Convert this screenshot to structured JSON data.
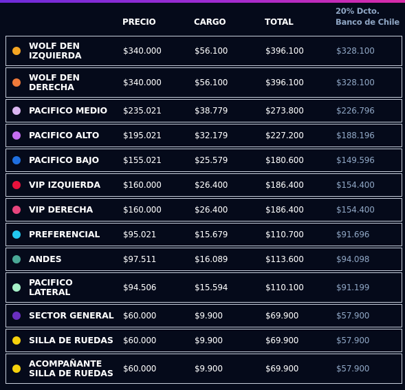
{
  "header": {
    "precio": "PRECIO",
    "cargo": "CARGO",
    "total": "TOTAL",
    "dcto_line1": "20% Dcto.",
    "dcto_line2": "Banco de Chile"
  },
  "rows": [
    {
      "name1": "WOLF DEN",
      "name2": "IZQUIERDA",
      "color": "#f5a623",
      "precio": "$340.000",
      "cargo": "$56.100",
      "total": "$396.100",
      "dcto": "$328.100"
    },
    {
      "name1": "WOLF DEN",
      "name2": "DERECHA",
      "color": "#ef7a3a",
      "precio": "$340.000",
      "cargo": "$56.100",
      "total": "$396.100",
      "dcto": "$328.100"
    },
    {
      "name1": "PACIFICO MEDIO",
      "name2": "",
      "color": "#d9b5f0",
      "precio": "$235.021",
      "cargo": "$38.779",
      "total": "$273.800",
      "dcto": "$226.796"
    },
    {
      "name1": "PACIFICO ALTO",
      "name2": "",
      "color": "#c56ef0",
      "precio": "$195.021",
      "cargo": "$32.179",
      "total": "$227.200",
      "dcto": "$188.196"
    },
    {
      "name1": "PACIFICO BAJO",
      "name2": "",
      "color": "#1f6fe0",
      "precio": "$155.021",
      "cargo": "$25.579",
      "total": "$180.600",
      "dcto": "$149.596"
    },
    {
      "name1": "VIP IZQUIERDA",
      "name2": "",
      "color": "#e8123c",
      "precio": "$160.000",
      "cargo": "$26.400",
      "total": "$186.400",
      "dcto": "$154.400"
    },
    {
      "name1": "VIP DERECHA",
      "name2": "",
      "color": "#e8457e",
      "precio": "$160.000",
      "cargo": "$26.400",
      "total": "$186.400",
      "dcto": "$154.400"
    },
    {
      "name1": "PREFERENCIAL",
      "name2": "",
      "color": "#22c8ef",
      "precio": "$95.021",
      "cargo": "$15.679",
      "total": "$110.700",
      "dcto": "$91.696"
    },
    {
      "name1": "ANDES",
      "name2": "",
      "color": "#4aa896",
      "precio": "$97.511",
      "cargo": "$16.089",
      "total": "$113.600",
      "dcto": "$94.098"
    },
    {
      "name1": "PACIFICO",
      "name2": "LATERAL",
      "color": "#a6f0c8",
      "precio": "$94.506",
      "cargo": "$15.594",
      "total": "$110.100",
      "dcto": "$91.199"
    },
    {
      "name1": "SECTOR GENERAL",
      "name2": "",
      "color": "#6a2fc0",
      "precio": "$60.000",
      "cargo": "$9.900",
      "total": "$69.900",
      "dcto": "$57.900"
    },
    {
      "name1": "SILLA DE RUEDAS",
      "name2": "",
      "color": "#f5d10c",
      "precio": "$60.000",
      "cargo": "$9.900",
      "total": "$69.900",
      "dcto": "$57.900"
    },
    {
      "name1": "ACOMPAÑANTE",
      "name2": "SILLA DE RUEDAS",
      "color": "#f5d10c",
      "precio": "$60.000",
      "cargo": "$9.900",
      "total": "$69.900",
      "dcto": "$57.900"
    }
  ]
}
